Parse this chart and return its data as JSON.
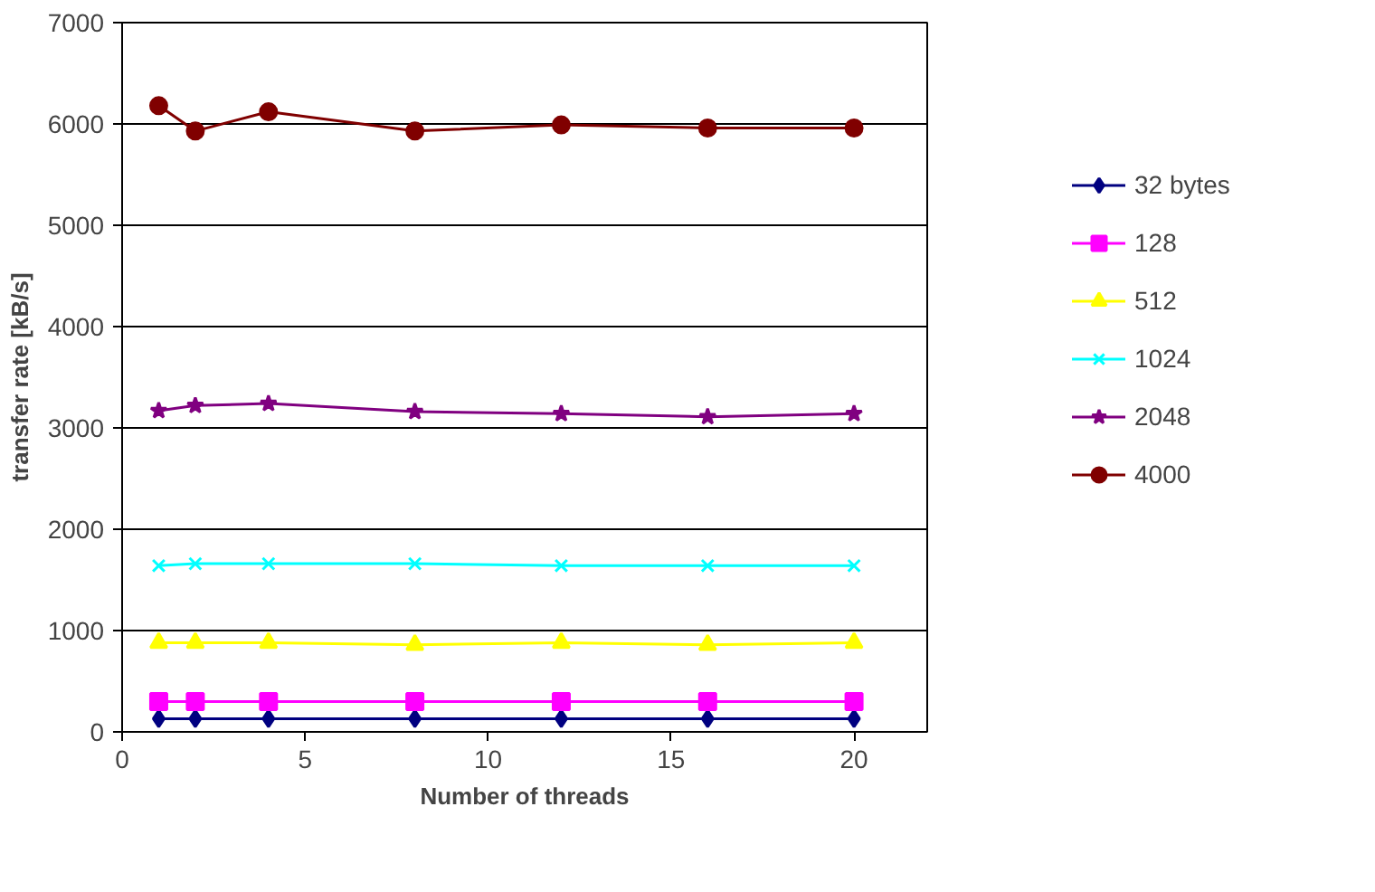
{
  "chart_data": {
    "type": "line",
    "xlabel": "Number of threads",
    "ylabel": "transfer rate [kB/s]",
    "x": [
      1,
      2,
      4,
      8,
      12,
      16,
      20
    ],
    "xlim": [
      0,
      22
    ],
    "xticks": [
      0,
      5,
      10,
      15,
      20
    ],
    "ylim": [
      0,
      7000
    ],
    "yticks": [
      0,
      1000,
      2000,
      3000,
      4000,
      5000,
      6000,
      7000
    ],
    "grid": "y",
    "legend": "right",
    "line_style": "solid",
    "series": [
      {
        "name": "32 bytes",
        "color": "#000080",
        "marker": "diamond",
        "values": [
          130,
          130,
          130,
          130,
          130,
          130,
          130
        ]
      },
      {
        "name": "128",
        "color": "#ff00ff",
        "marker": "square",
        "values": [
          300,
          300,
          300,
          300,
          300,
          300,
          300
        ]
      },
      {
        "name": "512",
        "color": "#ffff00",
        "marker": "triangle",
        "values": [
          880,
          880,
          880,
          860,
          880,
          860,
          880
        ]
      },
      {
        "name": "1024",
        "color": "#00ffff",
        "marker": "cross",
        "values": [
          1640,
          1660,
          1660,
          1660,
          1640,
          1640,
          1640
        ]
      },
      {
        "name": "2048",
        "color": "#800080",
        "marker": "star",
        "values": [
          3170,
          3220,
          3240,
          3160,
          3140,
          3110,
          3140
        ]
      },
      {
        "name": "4000",
        "color": "#800000",
        "marker": "circle",
        "values": [
          6180,
          5930,
          6120,
          5930,
          5990,
          5960,
          5960
        ]
      }
    ]
  }
}
